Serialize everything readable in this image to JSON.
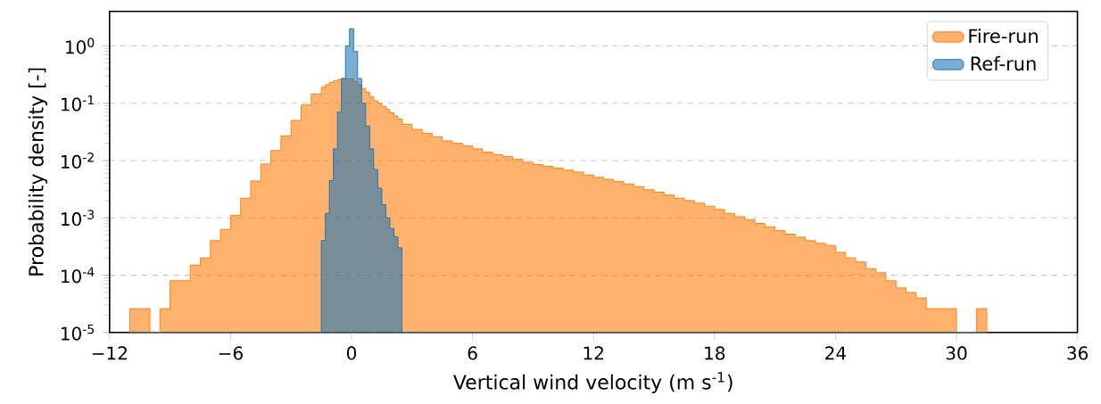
{
  "chart_data": {
    "type": "histogram",
    "xlabel": "Vertical wind velocity (m s$^{-1}$)",
    "ylabel": "Probability density [-]",
    "log": "y",
    "grid": "y",
    "legend": "top right",
    "xlim": [
      -12,
      36
    ],
    "ylim": [
      1e-05,
      4
    ],
    "xticks": [
      {
        "value": -12,
        "label": "−12"
      },
      {
        "value": -6,
        "label": "−6"
      },
      0,
      6,
      12,
      18,
      24,
      30,
      36
    ],
    "yticks": [
      {
        "value": 1e-05,
        "label": "10$^{-5}$"
      },
      {
        "value": 0.0001,
        "label": "10$^{-4}$"
      },
      {
        "value": 0.001,
        "label": "10$^{-3}$"
      },
      {
        "value": 0.01,
        "label": "10$^{-2}$"
      },
      {
        "value": 0.1,
        "label": "10$^{-1}$"
      },
      {
        "value": 1,
        "label": "10$^{0}$"
      }
    ],
    "bins": [
      -11,
      -10.5,
      -10,
      -9.5,
      -9,
      -8.5,
      -8,
      -7.5,
      -7,
      -6.5,
      -6,
      -5.5,
      -5,
      -4.5,
      -4,
      -3.5,
      -3,
      -2.5,
      -2,
      -1.5,
      -1.3,
      -1.1,
      -0.9,
      -0.7,
      -0.5,
      -0.3,
      -0.1,
      0.1,
      0.3,
      0.5,
      0.7,
      0.9,
      1.1,
      1.3,
      1.5,
      1.7,
      1.9,
      2.1,
      2.3,
      2.5,
      3,
      3.5,
      4,
      4.5,
      5,
      5.5,
      6,
      6.5,
      7,
      7.5,
      8,
      8.5,
      9,
      9.5,
      10,
      10.5,
      11,
      11.5,
      12,
      12.5,
      13,
      13.5,
      14,
      14.5,
      15,
      15.5,
      16,
      16.5,
      17,
      17.5,
      18,
      18.5,
      19,
      19.5,
      20,
      20.5,
      21,
      21.5,
      22,
      22.5,
      23,
      23.5,
      24,
      24.5,
      25,
      25.5,
      26,
      26.5,
      27,
      27.5,
      28,
      28.5,
      29,
      29.5,
      30,
      30.5,
      31,
      31.5
    ],
    "series": [
      {
        "name": "Fire-run",
        "color": "#ff7f0e",
        "values": [
          2.6e-05,
          2.6e-05,
          null,
          2.6e-05,
          8e-05,
          8e-05,
          0.00015,
          0.0002,
          0.0004,
          0.00063,
          0.0011,
          0.0022,
          0.0044,
          0.0087,
          0.015,
          0.027,
          0.05,
          0.093,
          0.145,
          0.19,
          0.21,
          0.23,
          0.245,
          0.26,
          0.27,
          0.27,
          0.265,
          0.24,
          0.21,
          0.18,
          0.155,
          0.13,
          0.11,
          0.1,
          0.088,
          0.078,
          0.068,
          0.06,
          0.053,
          0.043,
          0.035,
          0.03,
          0.026,
          0.022,
          0.02,
          0.018,
          0.016,
          0.014,
          0.0126,
          0.0117,
          0.0105,
          0.0093,
          0.0085,
          0.0079,
          0.0074,
          0.0068,
          0.0063,
          0.0056,
          0.0051,
          0.0047,
          0.0043,
          0.0039,
          0.0035,
          0.0031,
          0.0028,
          0.0025,
          0.0022,
          0.002,
          0.0018,
          0.0016,
          0.0014,
          0.0012,
          0.00105,
          0.00093,
          0.0008,
          0.0007,
          0.0006,
          0.00052,
          0.00046,
          0.0004,
          0.00036,
          0.00033,
          0.00025,
          0.0002,
          0.00017,
          0.00013,
          0.00011,
          8e-05,
          6e-05,
          5e-05,
          4e-05,
          2.6e-05,
          2.6e-05,
          2.6e-05,
          null,
          null,
          2.6e-05
        ]
      },
      {
        "name": "Ref-run",
        "color": "#1f77b4",
        "values": [
          null,
          null,
          null,
          null,
          null,
          null,
          null,
          null,
          null,
          null,
          null,
          null,
          null,
          null,
          null,
          null,
          null,
          null,
          null,
          0.0004,
          0.0012,
          0.0045,
          0.016,
          0.07,
          0.27,
          1.0,
          2.0,
          0.8,
          0.27,
          0.1,
          0.04,
          0.016,
          0.007,
          0.0033,
          0.0017,
          0.001,
          0.00065,
          0.00047,
          0.0003,
          null,
          null,
          null,
          null,
          null,
          null,
          null,
          null,
          null,
          null,
          null,
          null,
          null,
          null,
          null,
          null,
          null,
          null,
          null,
          null,
          null,
          null,
          null,
          null,
          null,
          null,
          null,
          null,
          null,
          null,
          null,
          null,
          null,
          null,
          null,
          null,
          null,
          null,
          null,
          null,
          null,
          null,
          null,
          null,
          null,
          null,
          null,
          null,
          null,
          null,
          null,
          null,
          null,
          null,
          null,
          null,
          null,
          null
        ]
      }
    ]
  }
}
